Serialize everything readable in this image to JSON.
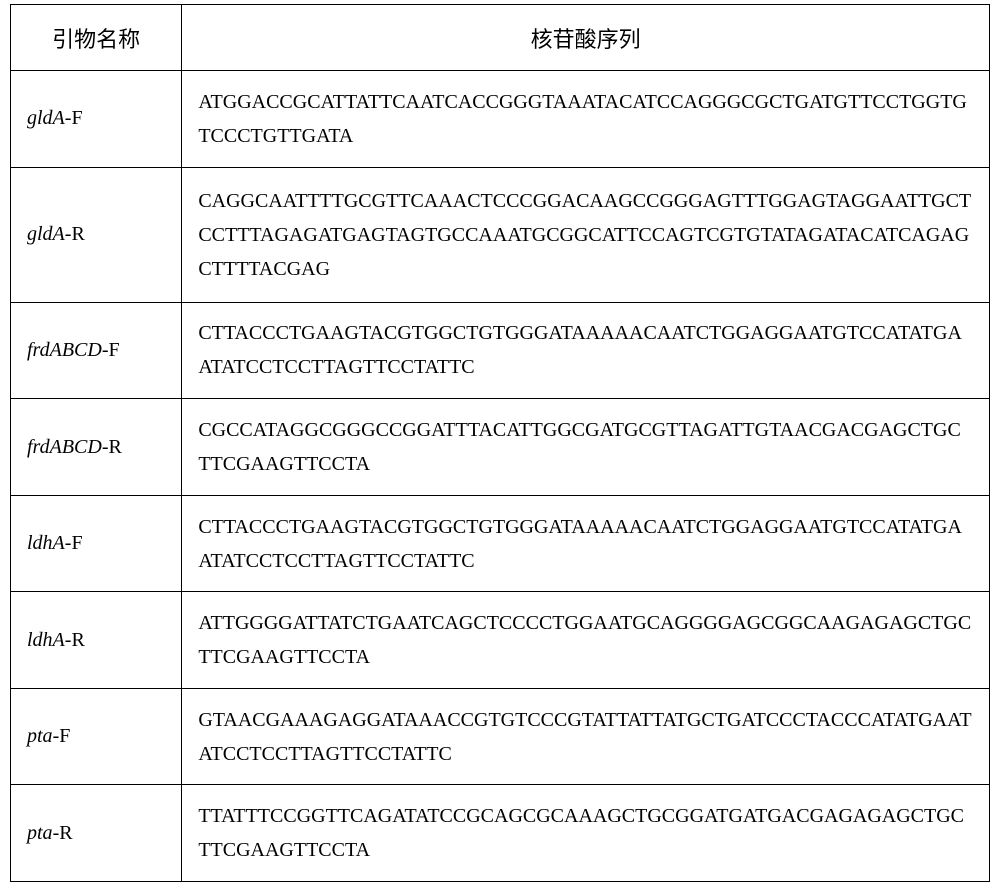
{
  "table": {
    "type": "table",
    "border_color": "#000000",
    "background_color": "#ffffff",
    "font_family": "SimSun, Times New Roman, serif",
    "header_fontsize": 22,
    "body_fontsize": 20,
    "columns": [
      {
        "label": "引物名称",
        "width_pct": 17.5,
        "align": "center"
      },
      {
        "label": "核苷酸序列",
        "width_pct": 82.5,
        "align": "center"
      }
    ],
    "rows": [
      {
        "gene": "gldA",
        "suffix": "-F",
        "sequence": "ATGGACCGCATTATTCAATCACCGGGTAAATACATCCAGGGCGCTGATGTTCCTGGTGTCCCTGTTGATA"
      },
      {
        "gene": "gldA",
        "suffix": "-R",
        "sequence": "CAGGCAATTTTGCGTTCAAACTCCCGGACAAGCCGGGAGTTTGGAGTAGGAATTGCTCCTTTAGAGATGAGTAGTGCCAAATGCGGCATTCCAGTCGTGTATAGATACATCAGAGCTTTTACGAG"
      },
      {
        "gene": "frdABCD",
        "suffix": "-F",
        "sequence": "CTTACCCTGAAGTACGTGGCTGTGGGATAAAAACAATCTGGAGGAATGTCCATATGAATATCCTCCTTAGTTCCTATTC"
      },
      {
        "gene": "frdABCD",
        "suffix": "-R",
        "sequence": "CGCCATAGGCGGGCCGGATTTACATTGGCGATGCGTTAGATTGTAACGACGAGCTGCTTCGAAGTTCCTA"
      },
      {
        "gene": "ldhA",
        "suffix": "-F",
        "sequence": "CTTACCCTGAAGTACGTGGCTGTGGGATAAAAACAATCTGGAGGAATGTCCATATGAATATCCTCCTTAGTTCCTATTC"
      },
      {
        "gene": "ldhA",
        "suffix": "-R",
        "sequence": "ATTGGGGATTATCTGAATCAGCTCCCCTGGAATGCAGGGGAGCGGCAAGAGAGCTGCTTCGAAGTTCCTA"
      },
      {
        "gene": "pta",
        "suffix": "-F",
        "sequence": "GTAACGAAAGAGGATAAACCGTGTCCCGTATTATTATGCTGATCCCTACCCATATGAATATCCTCCTTAGTTCCTATTC"
      },
      {
        "gene": "pta",
        "suffix": "-R",
        "sequence": "TTATTTCCGGTTCAGATATCCGCAGCGCAAAGCTGCGGATGATGACGAGAGAGCTGCTTCGAAGTTCCTA"
      }
    ]
  }
}
